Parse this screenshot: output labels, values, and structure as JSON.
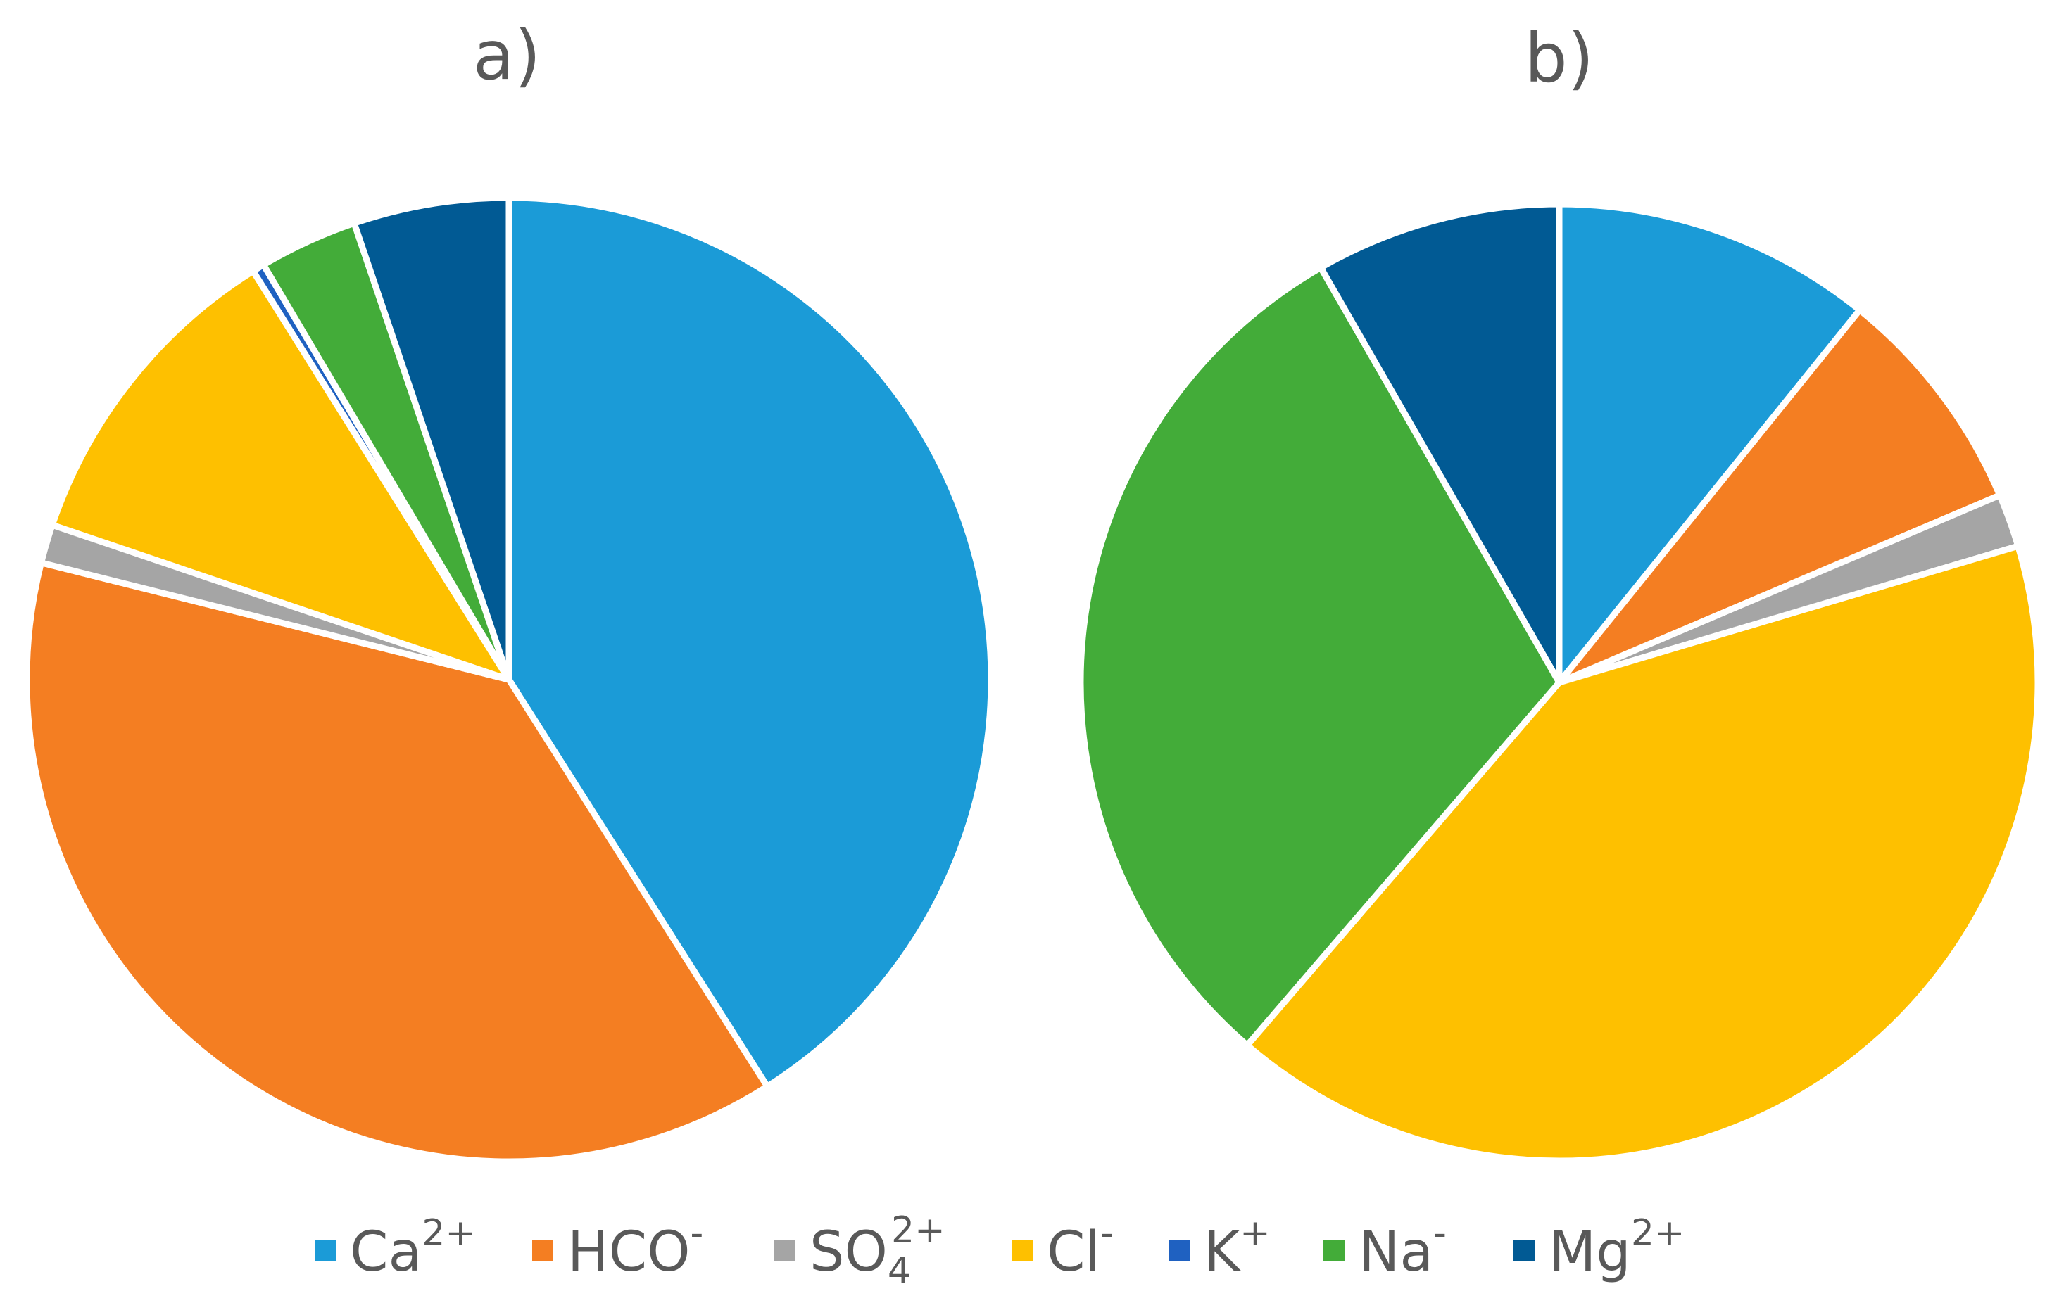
{
  "chart_data": [
    {
      "type": "pie",
      "title": "a)",
      "start": "top",
      "direction": "clockwise",
      "slices": [
        {
          "label": "Ca2+",
          "value": 41.0,
          "color": "#1B9BD7"
        },
        {
          "label": "HCO-",
          "value": 37.9,
          "color": "#F47E22"
        },
        {
          "label": "SO42+",
          "value": 1.3,
          "color": "#A5A5A5"
        },
        {
          "label": "Cl-",
          "value": 10.9,
          "color": "#FEC000"
        },
        {
          "label": "K+",
          "value": 0.4,
          "color": "#1F61C1"
        },
        {
          "label": "Na-",
          "value": 3.3,
          "color": "#43AC39"
        },
        {
          "label": "Mg2+",
          "value": 5.2,
          "color": "#015A94"
        }
      ]
    },
    {
      "type": "pie",
      "title": "b)",
      "start": "top",
      "direction": "clockwise",
      "slices": [
        {
          "label": "Ca2+",
          "value": 10.8,
          "color": "#1B9BD7"
        },
        {
          "label": "HCO-",
          "value": 7.8,
          "color": "#F47E22"
        },
        {
          "label": "SO42+",
          "value": 1.8,
          "color": "#A5A5A5"
        },
        {
          "label": "Cl-",
          "value": 40.9,
          "color": "#FEC000"
        },
        {
          "label": "K+",
          "value": 0.0,
          "color": "#1F61C1"
        },
        {
          "label": "Na-",
          "value": 30.4,
          "color": "#43AC39"
        },
        {
          "label": "Mg2+",
          "value": 8.3,
          "color": "#015A94"
        }
      ]
    }
  ],
  "legend": {
    "placement": "bottom-center",
    "items": [
      {
        "base": "Ca",
        "sub": "",
        "sup": "2+",
        "color": "#1B9BD7"
      },
      {
        "base": "HCO",
        "sub": "",
        "sup": "-",
        "color": "#F47E22"
      },
      {
        "base": "SO",
        "sub": "4",
        "sup": "2+",
        "color": "#A5A5A5"
      },
      {
        "base": "Cl",
        "sub": "",
        "sup": "-",
        "color": "#FEC000"
      },
      {
        "base": "K",
        "sub": "",
        "sup": "+",
        "color": "#1F61C1"
      },
      {
        "base": "Na",
        "sub": "",
        "sup": "-",
        "color": "#43AC39"
      },
      {
        "base": "Mg",
        "sub": "",
        "sup": "2+",
        "color": "#015A94"
      }
    ]
  }
}
